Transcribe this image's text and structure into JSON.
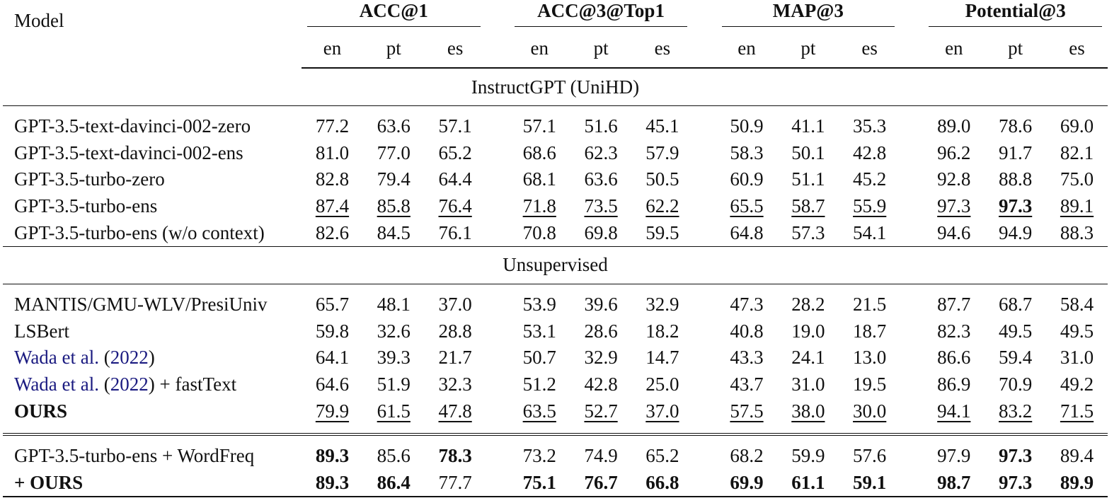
{
  "table": {
    "model_header": "Model",
    "metric_groups": [
      "ACC@1",
      "ACC@3@Top1",
      "MAP@3",
      "Potential@3"
    ],
    "languages": [
      "en",
      "pt",
      "es"
    ],
    "sections": [
      {
        "title": "InstructGPT (UniHD)",
        "rows": [
          {
            "model": "GPT-3.5-text-davinci-002-zero",
            "values": [
              "77.2",
              "63.6",
              "57.1",
              "57.1",
              "51.6",
              "45.1",
              "50.9",
              "41.1",
              "35.3",
              "89.0",
              "78.6",
              "69.0"
            ]
          },
          {
            "model": "GPT-3.5-text-davinci-002-ens",
            "values": [
              "81.0",
              "77.0",
              "65.2",
              "68.6",
              "62.3",
              "57.9",
              "58.3",
              "50.1",
              "42.8",
              "96.2",
              "91.7",
              "82.1"
            ]
          },
          {
            "model": "GPT-3.5-turbo-zero",
            "values": [
              "82.8",
              "79.4",
              "64.4",
              "68.1",
              "63.6",
              "50.5",
              "60.9",
              "51.1",
              "45.2",
              "92.8",
              "88.8",
              "75.0"
            ]
          },
          {
            "model": "GPT-3.5-turbo-ens",
            "values": [
              "87.4",
              "85.8",
              "76.4",
              "71.8",
              "73.5",
              "62.2",
              "65.5",
              "58.7",
              "55.9",
              "97.3",
              "97.3",
              "89.1"
            ]
          },
          {
            "model": "GPT-3.5-turbo-ens (w/o context)",
            "values": [
              "82.6",
              "84.5",
              "76.1",
              "70.8",
              "69.8",
              "59.5",
              "64.8",
              "57.3",
              "54.1",
              "94.6",
              "94.9",
              "88.3"
            ]
          }
        ]
      },
      {
        "title": "Unsupervised",
        "rows": [
          {
            "model": "MANTIS/GMU-WLV/PresiUniv",
            "values": [
              "65.7",
              "48.1",
              "37.0",
              "53.9",
              "39.6",
              "32.9",
              "47.3",
              "28.2",
              "21.5",
              "87.7",
              "68.7",
              "58.4"
            ]
          },
          {
            "model": "LSBert",
            "values": [
              "59.8",
              "32.6",
              "28.8",
              "53.1",
              "28.6",
              "18.2",
              "40.8",
              "19.0",
              "18.7",
              "82.3",
              "49.5",
              "49.5"
            ]
          },
          {
            "model_link": "Wada et al.",
            "model_open": " (",
            "model_year": "2022",
            "model_close": ")",
            "model_suffix": "",
            "values": [
              "64.1",
              "39.3",
              "21.7",
              "50.7",
              "32.9",
              "14.7",
              "43.3",
              "24.1",
              "13.0",
              "86.6",
              "59.4",
              "31.0"
            ]
          },
          {
            "model_link": "Wada et al.",
            "model_open": " (",
            "model_year": "2022",
            "model_close": ")",
            "model_suffix": " + fastText",
            "values": [
              "64.6",
              "51.9",
              "32.3",
              "51.2",
              "42.8",
              "25.0",
              "43.7",
              "31.0",
              "19.5",
              "86.9",
              "70.9",
              "49.2"
            ]
          },
          {
            "model": "OURS",
            "values": [
              "79.9",
              "61.5",
              "47.8",
              "63.5",
              "52.7",
              "37.0",
              "57.5",
              "38.0",
              "30.0",
              "94.1",
              "83.2",
              "71.5"
            ]
          }
        ]
      },
      {
        "title": "",
        "rows": [
          {
            "model": "GPT-3.5-turbo-ens + WordFreq",
            "values": [
              "89.3",
              "85.6",
              "78.3",
              "73.2",
              "74.9",
              "65.2",
              "68.2",
              "59.9",
              "57.6",
              "97.9",
              "97.3",
              "89.4"
            ]
          },
          {
            "model_plus": "+ ",
            "model_bold": "OURS",
            "values": [
              "89.3",
              "86.4",
              "77.7",
              "75.1",
              "76.7",
              "66.8",
              "69.9",
              "61.1",
              "59.1",
              "98.7",
              "97.3",
              "89.9"
            ]
          }
        ]
      }
    ],
    "styles": {
      "underline_rows": [
        "GPT-3.5-turbo-ens",
        "OURS"
      ],
      "link_color": "#1a1a80"
    }
  }
}
